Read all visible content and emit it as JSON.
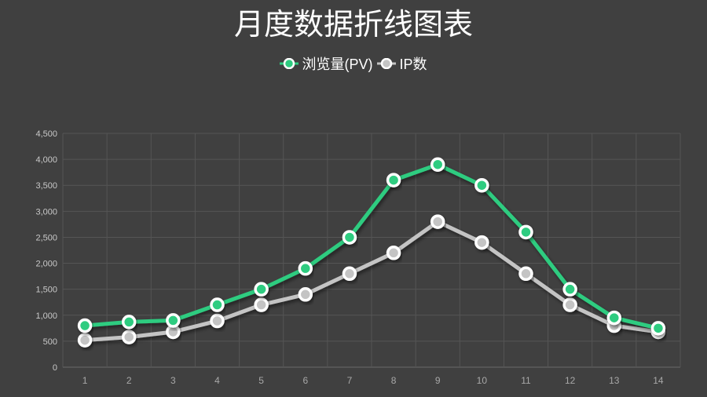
{
  "title": "月度数据折线图表",
  "legend": [
    {
      "label": "浏览量(PV)",
      "color": "#2ecc80"
    },
    {
      "label": "IP数",
      "color": "#c4c4c4"
    }
  ],
  "chart_data": {
    "type": "line",
    "title": "月度数据折线图表",
    "xlabel": "",
    "ylabel": "",
    "categories": [
      "1",
      "2",
      "3",
      "4",
      "5",
      "6",
      "7",
      "8",
      "9",
      "10",
      "11",
      "12",
      "13",
      "14"
    ],
    "series": [
      {
        "name": "浏览量(PV)",
        "color": "#2ecc80",
        "values": [
          800,
          870,
          900,
          1200,
          1500,
          1900,
          2500,
          3600,
          3900,
          3500,
          2600,
          1500,
          950,
          750
        ]
      },
      {
        "name": "IP数",
        "color": "#c4c4c4",
        "values": [
          520,
          580,
          680,
          890,
          1200,
          1400,
          1800,
          2200,
          2800,
          2400,
          1800,
          1200,
          800,
          680
        ]
      }
    ],
    "ylim": [
      0,
      4500
    ],
    "yticks": [
      "0",
      "500",
      "1,000",
      "1,500",
      "2,000",
      "2,500",
      "3,000",
      "3,500",
      "4,000",
      "4,500"
    ],
    "grid": true,
    "legend_position": "top"
  }
}
